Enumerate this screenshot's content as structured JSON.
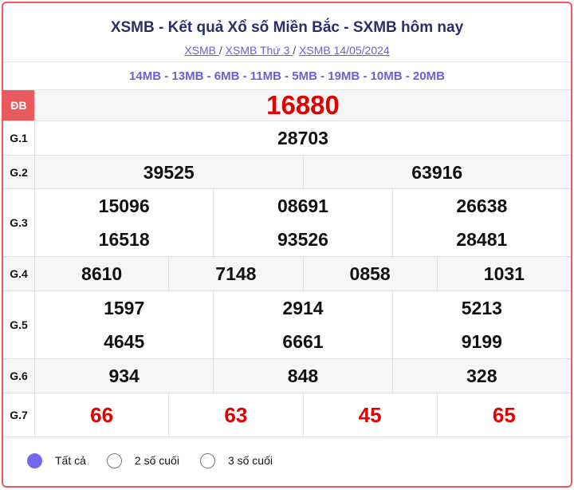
{
  "header": {
    "title": "XSMB - Kết quả Xổ số Miền Bắc - SXMB hôm nay",
    "breadcrumb": [
      "XSMB ",
      "XSMB Thứ 3 ",
      "XSMB 14/05/2024"
    ],
    "separator": "/"
  },
  "codes": "14MB - 13MB - 6MB - 11MB - 5MB - 19MB - 10MB - 20MB",
  "prizes": [
    {
      "label": "ĐB",
      "values": [
        "16880"
      ]
    },
    {
      "label": "G.1",
      "values": [
        "28703"
      ]
    },
    {
      "label": "G.2",
      "values": [
        "39525",
        "63916"
      ]
    },
    {
      "label": "G.3",
      "values": [
        "15096",
        "08691",
        "26638",
        "16518",
        "93526",
        "28481"
      ]
    },
    {
      "label": "G.4",
      "values": [
        "8610",
        "7148",
        "0858",
        "1031"
      ]
    },
    {
      "label": "G.5",
      "values": [
        "1597",
        "2914",
        "5213",
        "4645",
        "6661",
        "9199"
      ]
    },
    {
      "label": "G.6",
      "values": [
        "934",
        "848",
        "328"
      ]
    },
    {
      "label": "G.7",
      "values": [
        "66",
        "63",
        "45",
        "65"
      ]
    }
  ],
  "filters": [
    {
      "label": "Tất cả",
      "selected": true
    },
    {
      "label": "2 số cuối",
      "selected": false
    },
    {
      "label": "3 số cuối",
      "selected": false
    }
  ],
  "colors": {
    "accent": "#e95a5f",
    "prize_red": "#e00000",
    "link": "#6a5fd6",
    "radio": "#7269ec"
  }
}
